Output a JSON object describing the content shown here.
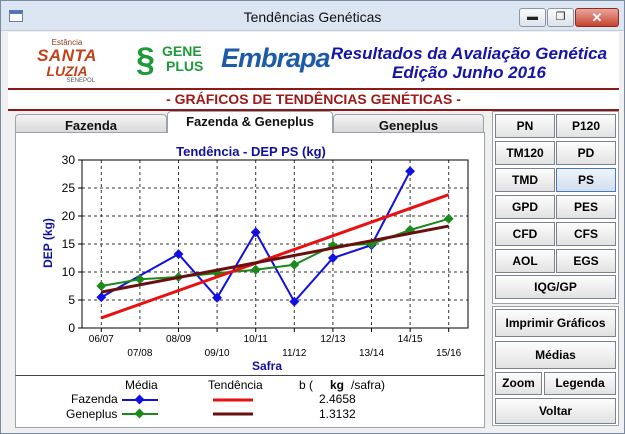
{
  "window": {
    "title": "Tendências Genéticas",
    "min_glyph": "▬",
    "max_glyph": "❐",
    "close_glyph": "✕"
  },
  "header": {
    "logo_santa": {
      "line1": "Estância",
      "line2": "SANTA",
      "line3": "LUZIA",
      "line4": "SENEPOL"
    },
    "logo_geneplus": {
      "line1": "GENE",
      "line2": "PLUS"
    },
    "logo_embrapa": "Embrapa",
    "title_line1": "Resultados da Avaliação Genética",
    "title_line2": "Edição Junho 2016"
  },
  "section_title": "- GRÁFICOS DE TENDÊNCIAS GENÉTICAS -",
  "tabs": [
    {
      "label": "Fazenda",
      "active": false
    },
    {
      "label": "Fazenda & Geneplus",
      "active": true
    },
    {
      "label": "Geneplus",
      "active": false
    }
  ],
  "trait_buttons": [
    {
      "label": "PN",
      "active": false
    },
    {
      "label": "P120",
      "active": false
    },
    {
      "label": "TM120",
      "active": false
    },
    {
      "label": "PD",
      "active": false
    },
    {
      "label": "TMD",
      "active": false
    },
    {
      "label": "PS",
      "active": true
    },
    {
      "label": "GPD",
      "active": false
    },
    {
      "label": "PES",
      "active": false
    },
    {
      "label": "CFD",
      "active": false
    },
    {
      "label": "CFS",
      "active": false
    },
    {
      "label": "AOL",
      "active": false
    },
    {
      "label": "EGS",
      "active": false
    },
    {
      "label": "IQG/GP",
      "active": false
    }
  ],
  "action_buttons": {
    "print": "Imprimir Gráficos",
    "means": "Médias",
    "zoom": "Zoom",
    "legend": "Legenda",
    "back": "Voltar"
  },
  "legend": {
    "col_media": "Média",
    "col_tendencia": "Tendência",
    "col_b_prefix": "b (",
    "col_b_unit": "kg",
    "col_b_suffix": "/safra)",
    "rows": [
      {
        "name": "Fazenda",
        "b": "2.4658"
      },
      {
        "name": "Geneplus",
        "b": "1.3132"
      }
    ]
  },
  "chart_data": {
    "type": "line",
    "title": "Tendência - DEP PS (kg)",
    "xlabel": "Safra",
    "ylabel": "DEP (kg)",
    "ylim": [
      0,
      30
    ],
    "yticks": [
      0,
      5,
      10,
      15,
      20,
      25,
      30
    ],
    "categories": [
      "06/07",
      "07/08",
      "08/09",
      "09/10",
      "10/11",
      "11/12",
      "12/13",
      "13/14",
      "14/15",
      "15/16"
    ],
    "grid": true,
    "series": [
      {
        "name": "Fazenda",
        "kind": "media",
        "color": "#1010e0",
        "marker": "diamond",
        "values": [
          5.5,
          null,
          13.2,
          5.4,
          17.1,
          4.7,
          12.5,
          14.8,
          28.0,
          null
        ]
      },
      {
        "name": "Geneplus",
        "kind": "media",
        "color": "#1a8a1a",
        "marker": "diamond",
        "values": [
          7.5,
          8.7,
          9.1,
          9.8,
          10.4,
          11.3,
          14.7,
          15.0,
          17.5,
          19.5
        ]
      },
      {
        "name": "Fazenda",
        "kind": "tendencia",
        "color": "#e81010",
        "values": [
          1.8,
          null,
          null,
          null,
          null,
          null,
          null,
          null,
          null,
          23.8
        ]
      },
      {
        "name": "Geneplus",
        "kind": "tendencia",
        "color": "#6a0f0f",
        "values": [
          6.4,
          null,
          null,
          null,
          null,
          null,
          null,
          null,
          null,
          18.2
        ]
      }
    ]
  }
}
